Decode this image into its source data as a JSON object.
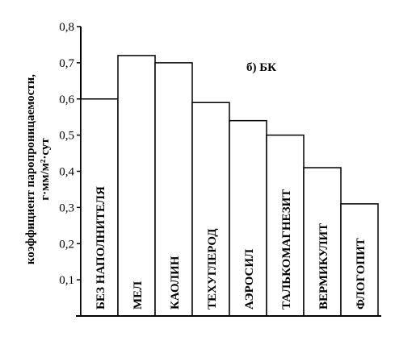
{
  "chart_data": {
    "type": "bar",
    "annotation": "б) БК",
    "ylabel_line1": "коэффициент паропроницаемости,",
    "ylabel_line2": "г·мм/м²·сут",
    "categories": [
      "БЕЗ НАПОЛНИТЕЛЯ",
      "МЕЛ",
      "КАОЛИН",
      "ТЕХУГЛЕРОД",
      "АЭРОСИЛ",
      "ТАЛЬКОМАГНЕЗИТ",
      "ВЕРМИКУЛИТ",
      "ФЛОГОПИТ"
    ],
    "values": [
      0.6,
      0.72,
      0.7,
      0.59,
      0.54,
      0.5,
      0.41,
      0.31
    ],
    "ylim": [
      0,
      0.8
    ],
    "yticks": [
      {
        "value": 0.1,
        "label": "0,1"
      },
      {
        "value": 0.2,
        "label": "0,2"
      },
      {
        "value": 0.3,
        "label": "0,3"
      },
      {
        "value": 0.4,
        "label": "0,4"
      },
      {
        "value": 0.5,
        "label": "0,5"
      },
      {
        "value": 0.6,
        "label": "0,6"
      },
      {
        "value": 0.7,
        "label": "0,7"
      },
      {
        "value": 0.8,
        "label": "0,8"
      }
    ],
    "grid": false,
    "legend": "none"
  }
}
